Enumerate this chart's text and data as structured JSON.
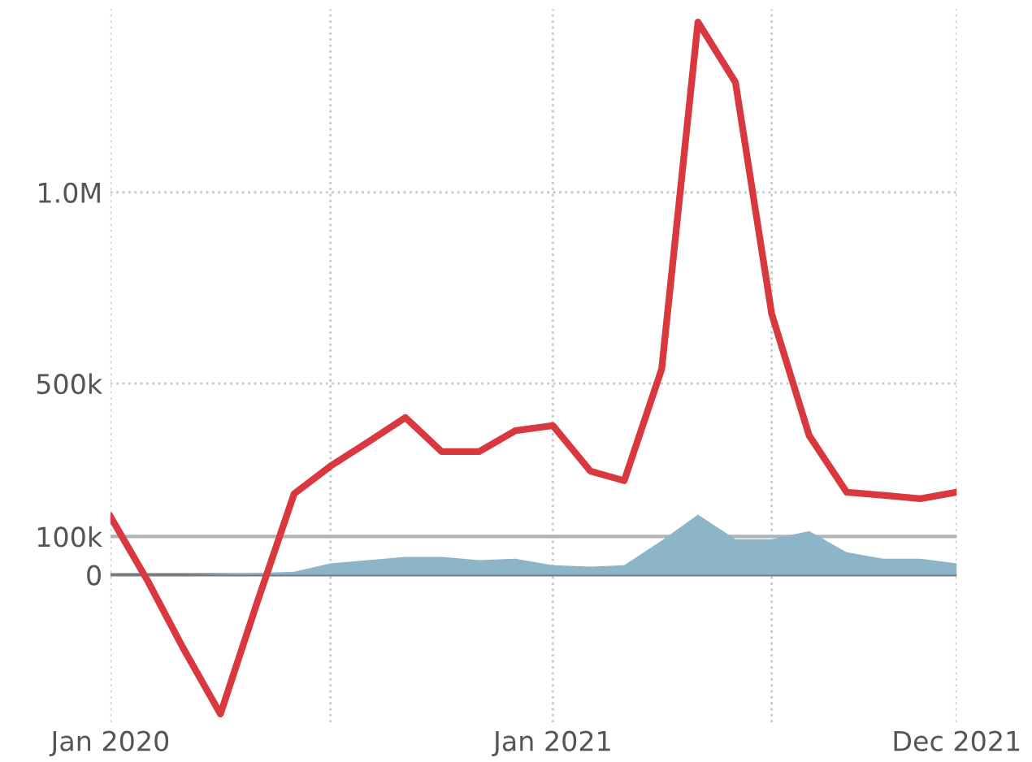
{
  "chart_data": {
    "type": "line",
    "x": [
      "2020-01",
      "2020-02",
      "2020-03",
      "2020-04",
      "2020-05",
      "2020-06",
      "2020-07",
      "2020-08",
      "2020-09",
      "2020-10",
      "2020-11",
      "2020-12",
      "2021-01",
      "2021-02",
      "2021-03",
      "2021-04",
      "2021-05",
      "2021-06",
      "2021-07",
      "2021-08",
      "2021-09",
      "2021-10",
      "2021-11",
      "2021-12"
    ],
    "series": [
      {
        "type": "area",
        "color": "#8db5c8",
        "values": [
          0,
          0,
          0,
          2000,
          5000,
          8000,
          30000,
          38000,
          47000,
          47000,
          38000,
          42000,
          25000,
          21000,
          25000,
          89000,
          157000,
          93000,
          93000,
          114000,
          59000,
          42000,
          42000,
          30000
        ]
      },
      {
        "color": "#d9383f",
        "values": [
          152000,
          -17000,
          -191000,
          -364000,
          -76000,
          212000,
          284000,
          347000,
          411000,
          322000,
          322000,
          377000,
          390000,
          271000,
          246000,
          538000,
          1445000,
          1288000,
          682000,
          364000,
          216000,
          208000,
          199000,
          216000
        ]
      }
    ],
    "xlim": [
      "2020-01",
      "2021-12"
    ],
    "xticks": [
      {
        "value": "2020-01",
        "label": "Jan 2020"
      },
      {
        "value": "2020-07",
        "label": null
      },
      {
        "value": "2021-01",
        "label": "Jan 2021"
      },
      {
        "value": "2021-07",
        "label": null
      },
      {
        "value": "2021-12",
        "label": "Dec 2021"
      }
    ],
    "ylim": [
      -386000,
      1479000
    ],
    "yticks": [
      0,
      {
        "value": 100000,
        "label": "100k"
      },
      {
        "value": 500000,
        "label": "500k"
      },
      {
        "value": 1000000,
        "label": "1.0M"
      }
    ],
    "ref_lines": [
      {
        "axis": "y",
        "value": 0,
        "label": null,
        "color": "#707a80"
      },
      {
        "axis": "y",
        "value": 100000,
        "label": null,
        "color": "#b0b4b8"
      }
    ],
    "grid": true,
    "line_style": "solid",
    "marker": "none"
  }
}
